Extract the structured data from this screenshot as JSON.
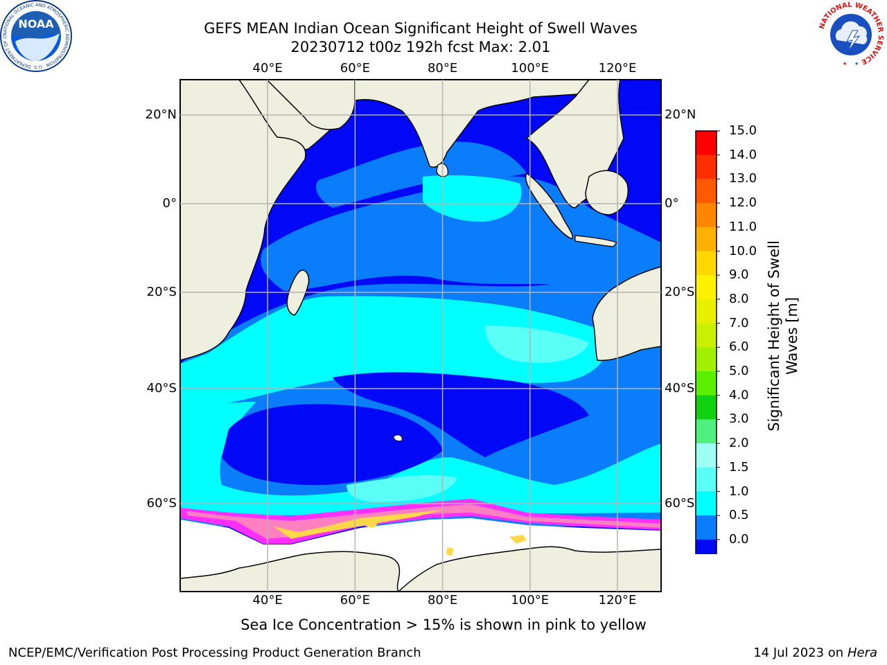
{
  "title": {
    "line1": "GEFS MEAN Indian Ocean Significant Height of Swell Waves",
    "line2": "20230712 t00z 192h fcst   Max: 2.01"
  },
  "map": {
    "lon_range": [
      20,
      130
    ],
    "lat_range": [
      -73,
      27
    ],
    "lon_ticks": [
      "40°E",
      "60°E",
      "80°E",
      "100°E",
      "120°E"
    ],
    "lat_ticks": [
      "20°N",
      "0°",
      "20°S",
      "40°S",
      "60°S"
    ],
    "gridlines": true,
    "colors": {
      "land": "#efefdf",
      "band_0_0_5": "#0008f5",
      "band_0_5_1_0": "#0a7dfa",
      "band_1_0_1_5": "#00ffff",
      "band_1_5_2_0": "#5afff5",
      "ice_pink": "#ff80c0",
      "ice_yellow": "#ffd84a",
      "ice_magenta": "#ff30ff"
    }
  },
  "colorbar": {
    "label": "Significant Height of Swell Waves [m]",
    "label_line1": "Significant Height of Swell",
    "label_line2": "Waves [m]",
    "ticks": [
      "15.0",
      "14.0",
      "13.0",
      "12.0",
      "11.0",
      "10.0",
      "9.0",
      "8.0",
      "7.0",
      "6.0",
      "5.0",
      "4.0",
      "3.0",
      "2.0",
      "1.5",
      "1.0",
      "0.5",
      "0.0"
    ],
    "colors": [
      "#ff0000",
      "#ff2e00",
      "#ff5a00",
      "#ff8600",
      "#ffb000",
      "#ffd800",
      "#fff200",
      "#e8f000",
      "#c8f000",
      "#a0f000",
      "#5af000",
      "#10d010",
      "#50f080",
      "#a0fff5",
      "#5afff5",
      "#00ffff",
      "#0a7dfa",
      "#0008f5"
    ]
  },
  "caption": "Sea Ice Concentration > 15% is shown in pink to yellow",
  "footer": {
    "left": "NCEP/EMC/Verification Post Processing Product Generation Branch",
    "right_date": "14 Jul 2023 on ",
    "right_host": "Hera"
  },
  "logos": {
    "noaa_text": "NOAA",
    "noaa_ring": "NATIONAL OCEANIC AND ATMOSPHERIC ADMINISTRATION · U.S. DEPARTMENT OF COMMERCE ·",
    "nws_ring": "NATIONAL WEATHER SERVICE"
  }
}
